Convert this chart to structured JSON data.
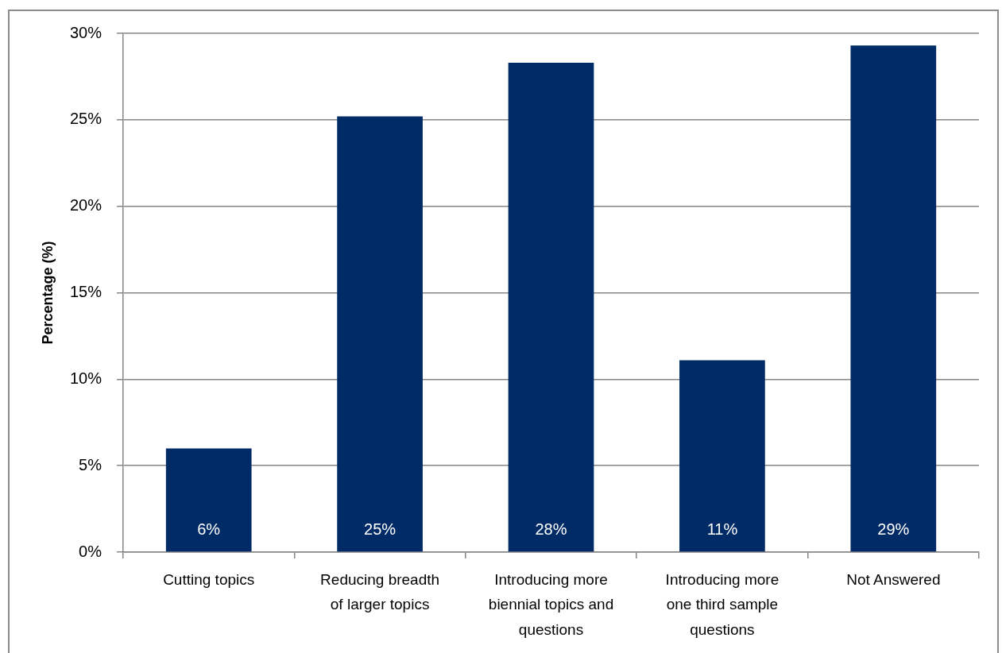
{
  "chart_data": {
    "type": "bar",
    "ylabel": "Percentage (%)",
    "categories": [
      "Cutting topics",
      "Reducing breadth of larger topics",
      "Introducing more biennial topics and questions",
      "Introducing more one third sample questions",
      "Not Answered"
    ],
    "values": [
      6.0,
      25.2,
      28.3,
      11.1,
      29.3
    ],
    "color": "#002b66",
    "value_labels": [
      "6%",
      "25%",
      "28%",
      "11%",
      "29%"
    ],
    "ylim": [
      0,
      30
    ],
    "yticks": [
      {
        "value": 0,
        "label": "0%"
      },
      {
        "value": 5,
        "label": "5%"
      },
      {
        "value": 10,
        "label": "10%"
      },
      {
        "value": 15,
        "label": "15%"
      },
      {
        "value": 20,
        "label": "20%"
      },
      {
        "value": 25,
        "label": "25%"
      },
      {
        "value": 30,
        "label": "30%"
      }
    ],
    "grid": "y"
  }
}
